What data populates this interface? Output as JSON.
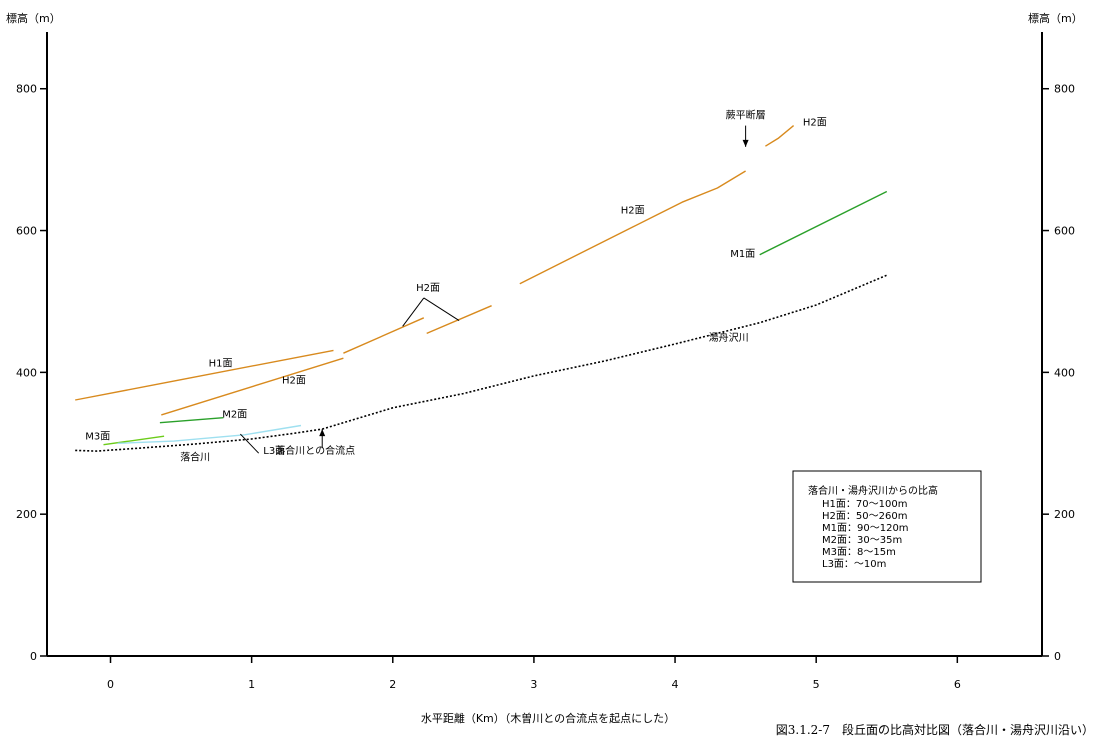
{
  "chart_data": {
    "type": "line",
    "caption": "図3.1.2-7　段丘面の比高対比図（落合川・湯舟沢川沿い）",
    "xlabel": "水平距離（Km）（木曽川との合流点を起点にした）",
    "ylabel_left": "標高（m）",
    "ylabel_right": "標高（m）",
    "xlim": [
      -0.45,
      6.6
    ],
    "ylim": [
      0,
      880
    ],
    "x_ticks": [
      0,
      1,
      2,
      3,
      4,
      5,
      6
    ],
    "y_ticks": [
      0,
      200,
      400,
      600,
      800
    ],
    "grid": false,
    "colors": {
      "H1": "#d88a1e",
      "H2": "#d88a1e",
      "M1": "#2aa02a",
      "M2": "#2aa02a",
      "M3": "#6ccc1a",
      "L3": "#9fe0f0",
      "river": "#000000"
    },
    "series": [
      {
        "name": "H1面",
        "kind": "H1",
        "segments": [
          [
            [
              -0.25,
              361
            ],
            [
              1.58,
              431
            ]
          ]
        ]
      },
      {
        "name": "H2面",
        "kind": "H2",
        "segments": [
          [
            [
              0.36,
              340
            ],
            [
              1.65,
              420
            ]
          ],
          [
            [
              1.65,
              427
            ],
            [
              2.22,
              477
            ]
          ],
          [
            [
              2.24,
              455
            ],
            [
              2.7,
              494
            ]
          ],
          [
            [
              2.9,
              525
            ],
            [
              3.7,
              605
            ],
            [
              3.85,
              620
            ],
            [
              4.05,
              640
            ],
            [
              4.3,
              660
            ],
            [
              4.5,
              684
            ]
          ],
          [
            [
              4.64,
              719
            ],
            [
              4.73,
              730
            ],
            [
              4.84,
              748
            ]
          ]
        ]
      },
      {
        "name": "M1面",
        "kind": "M1",
        "segments": [
          [
            [
              4.6,
              566
            ],
            [
              5.5,
              655
            ]
          ]
        ]
      },
      {
        "name": "M2面",
        "kind": "M2",
        "segments": [
          [
            [
              0.35,
              329
            ],
            [
              0.8,
              336
            ]
          ]
        ]
      },
      {
        "name": "M3面",
        "kind": "M3",
        "segments": [
          [
            [
              -0.05,
              298
            ],
            [
              0.38,
              310
            ]
          ]
        ]
      },
      {
        "name": "L3面",
        "kind": "L3",
        "segments": [
          [
            [
              0.05,
              300
            ],
            [
              0.45,
              303
            ],
            [
              0.95,
              312
            ],
            [
              1.35,
              325
            ]
          ]
        ]
      },
      {
        "name": "落合川",
        "kind": "river",
        "dashed": true,
        "segments": [
          [
            [
              -0.25,
              290
            ],
            [
              -0.1,
              289
            ],
            [
              0.2,
              293
            ],
            [
              0.6,
              299
            ],
            [
              1.0,
              306
            ],
            [
              1.3,
              314
            ],
            [
              1.5,
              320
            ]
          ]
        ]
      },
      {
        "name": "湯舟沢川",
        "kind": "river",
        "dashed": true,
        "segments": [
          [
            [
              1.5,
              320
            ],
            [
              2.0,
              350
            ],
            [
              2.5,
              370
            ],
            [
              3.0,
              395
            ],
            [
              3.5,
              416
            ],
            [
              4.0,
              440
            ],
            [
              4.6,
              470
            ],
            [
              5.0,
              495
            ],
            [
              5.5,
              537
            ]
          ]
        ]
      }
    ],
    "annotations": [
      {
        "text": "H1面",
        "x": 0.78,
        "y": 408
      },
      {
        "text": "H2面",
        "x": 1.3,
        "y": 384
      },
      {
        "text": "H2面",
        "x": 2.25,
        "y": 515
      },
      {
        "text": "H2面",
        "x": 3.7,
        "y": 624
      },
      {
        "text": "H2面",
        "x": 4.99,
        "y": 748
      },
      {
        "text": "M1面",
        "x": 4.48,
        "y": 563
      },
      {
        "text": "M2面",
        "x": 0.88,
        "y": 336
      },
      {
        "text": "M3面",
        "x": -0.09,
        "y": 305
      },
      {
        "text": "L3面",
        "x": 1.16,
        "y": 285
      },
      {
        "text": "落合川",
        "x": 0.6,
        "y": 276
      },
      {
        "text": "湯舟沢川",
        "x": 4.38,
        "y": 444
      },
      {
        "text": "落合川との合流点",
        "x": 1.45,
        "y": 285
      },
      {
        "text": "蕨平断層",
        "x": 4.5,
        "y": 758
      }
    ],
    "leaders": [
      {
        "from": [
          2.22,
          505
        ],
        "to": [
          2.07,
          465
        ]
      },
      {
        "from": [
          2.22,
          505
        ],
        "to": [
          2.47,
          473
        ]
      },
      {
        "from": [
          1.05,
          286
        ],
        "to": [
          0.92,
          313
        ]
      }
    ],
    "arrows": [
      {
        "from": [
          1.5,
          293
        ],
        "to": [
          1.5,
          320
        ]
      },
      {
        "from": [
          4.5,
          748
        ],
        "to": [
          4.5,
          718
        ]
      }
    ],
    "legend": {
      "placement": "bottom-right",
      "title": "落合川・湯舟沢川からの比高",
      "rows": [
        "H1面：70〜100m",
        "H2面：50〜260m",
        "M1面：90〜120m",
        "M2面：30〜35m",
        "M3面：8〜15m",
        "L3面：〜10m"
      ]
    }
  }
}
